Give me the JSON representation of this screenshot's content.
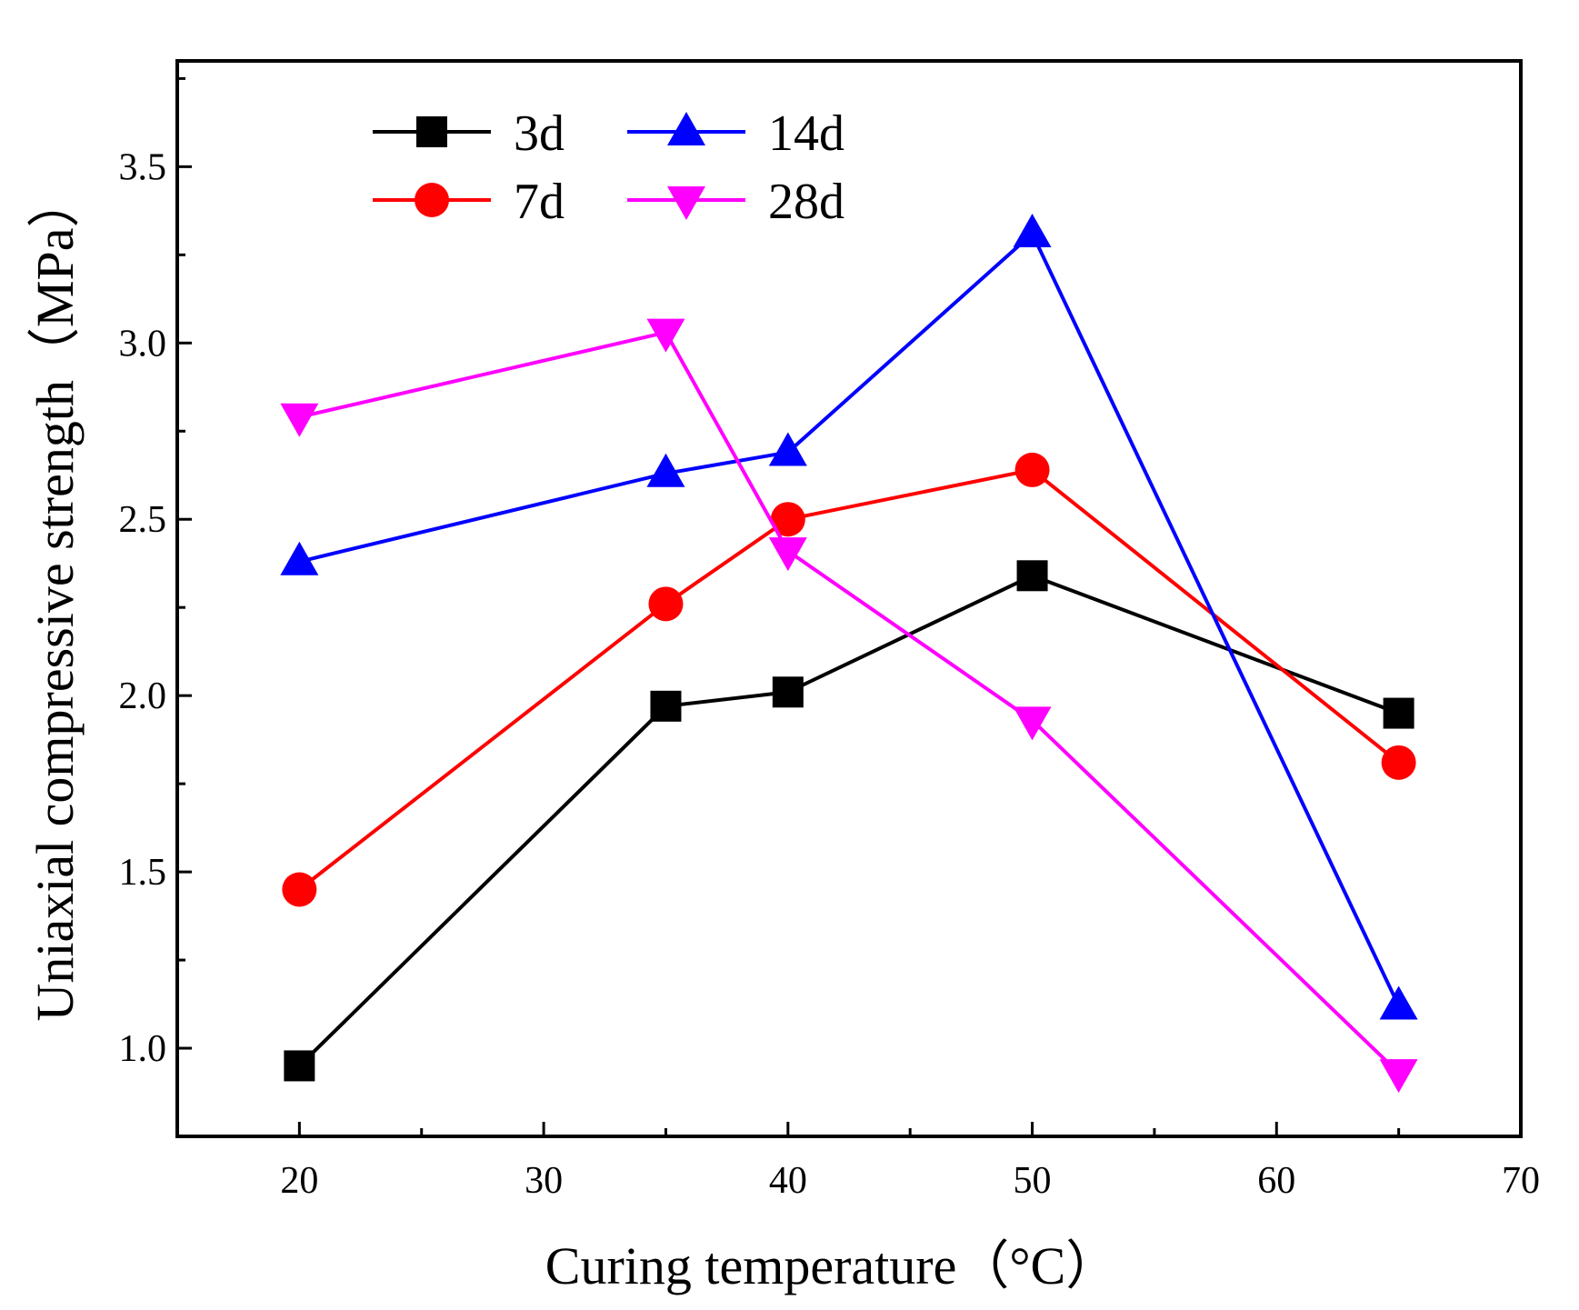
{
  "chart_data": {
    "type": "line",
    "title": "",
    "xlabel": "Curing temperature（°C）",
    "ylabel": "Uniaxial compressive strength（MPa）",
    "xlim": [
      15,
      70
    ],
    "ylim": [
      0.75,
      3.8
    ],
    "xticks": [
      20,
      30,
      40,
      50,
      60,
      70
    ],
    "xtick_labels": [
      "20",
      "30",
      "40",
      "50",
      "60",
      "70"
    ],
    "yticks": [
      1.0,
      1.5,
      2.0,
      2.5,
      3.0,
      3.5
    ],
    "ytick_labels": [
      "1.0",
      "1.5",
      "2.0",
      "2.5",
      "3.0",
      "3.5"
    ],
    "x": [
      20,
      35,
      40,
      50,
      65
    ],
    "series": [
      {
        "name": "3d",
        "color": "#000000",
        "marker": "square",
        "values": [
          0.95,
          1.97,
          2.01,
          2.34,
          1.95
        ]
      },
      {
        "name": "7d",
        "color": "#ff0000",
        "marker": "circle",
        "values": [
          1.45,
          2.26,
          2.5,
          2.64,
          1.81
        ]
      },
      {
        "name": "14d",
        "color": "#0000ff",
        "marker": "triangle-up",
        "values": [
          2.38,
          2.63,
          2.69,
          3.31,
          1.12
        ]
      },
      {
        "name": "28d",
        "color": "#ff00ff",
        "marker": "triangle-down",
        "values": [
          2.79,
          3.03,
          2.41,
          1.93,
          0.93
        ]
      }
    ],
    "legend_position": "top-left"
  }
}
